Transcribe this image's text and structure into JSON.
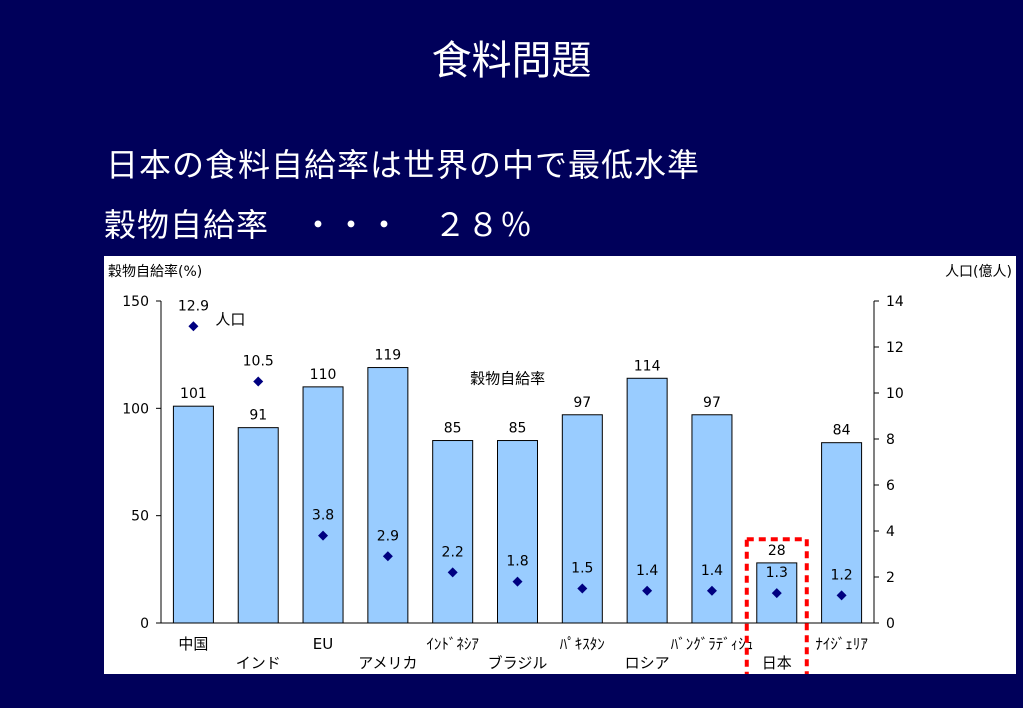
{
  "slide": {
    "title": "食料問題",
    "line1": "日本の食料自給率は世界の中で最低水準",
    "line2": "穀物自給率　・・・　２８％"
  },
  "colors": {
    "background": "#00005a",
    "bar": "#99ccff",
    "marker": "#000080",
    "highlight": "#ff0000"
  },
  "chart_data": {
    "type": "bar",
    "left_axis_label": "穀物自給率(%)",
    "right_axis_label": "人口(億人)",
    "left_ticks": [
      "0",
      "50",
      "100",
      "150"
    ],
    "right_ticks": [
      "0",
      "2",
      "4",
      "6",
      "8",
      "10",
      "12",
      "14"
    ],
    "ylim": [
      0,
      150
    ],
    "y2lim": [
      0,
      14
    ],
    "categories": [
      "中国",
      "インド",
      "EU",
      "アメリカ",
      "ｲﾝﾄﾞﾈｼｱ",
      "ブラジル",
      "ﾊﾟｷｽﾀﾝ",
      "ロシア",
      "ﾊﾞﾝｸﾞﾗﾃﾞｨｼｭ",
      "日本",
      "ﾅｲｼﾞｪﾘｱ"
    ],
    "series": [
      {
        "name": "穀物自給率",
        "type": "bar",
        "values": [
          101,
          91,
          110,
          119,
          85,
          85,
          97,
          114,
          97,
          28,
          84
        ]
      },
      {
        "name": "人口",
        "type": "scatter",
        "values": [
          12.9,
          10.5,
          3.8,
          2.9,
          2.2,
          1.8,
          1.5,
          1.4,
          1.4,
          1.3,
          1.2
        ]
      }
    ],
    "highlight_category": "日本"
  }
}
